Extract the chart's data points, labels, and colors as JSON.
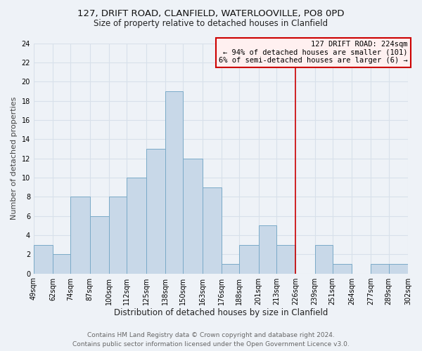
{
  "title": "127, DRIFT ROAD, CLANFIELD, WATERLOOVILLE, PO8 0PD",
  "subtitle": "Size of property relative to detached houses in Clanfield",
  "xlabel": "Distribution of detached houses by size in Clanfield",
  "ylabel": "Number of detached properties",
  "bin_edges": [
    49,
    62,
    74,
    87,
    100,
    112,
    125,
    138,
    150,
    163,
    176,
    188,
    201,
    213,
    226,
    239,
    251,
    264,
    277,
    289,
    302
  ],
  "bar_heights": [
    3,
    2,
    8,
    6,
    8,
    10,
    13,
    19,
    12,
    9,
    1,
    3,
    5,
    3,
    0,
    3,
    1,
    0,
    1,
    1
  ],
  "bar_color": "#c8d8e8",
  "bar_edgecolor": "#7aaac8",
  "redline_x": 226,
  "redline_color": "#cc0000",
  "annotation_title": "127 DRIFT ROAD: 224sqm",
  "annotation_line1": "← 94% of detached houses are smaller (101)",
  "annotation_line2": "6% of semi-detached houses are larger (6) →",
  "annotation_box_facecolor": "#fff0f0",
  "annotation_border_color": "#cc0000",
  "ylim": [
    0,
    24
  ],
  "yticks": [
    0,
    2,
    4,
    6,
    8,
    10,
    12,
    14,
    16,
    18,
    20,
    22,
    24
  ],
  "footer_line1": "Contains HM Land Registry data © Crown copyright and database right 2024.",
  "footer_line2": "Contains public sector information licensed under the Open Government Licence v3.0.",
  "bg_color": "#eef2f7",
  "grid_color": "#d8e0ea",
  "title_fontsize": 9.5,
  "subtitle_fontsize": 8.5,
  "axis_label_fontsize": 8,
  "tick_fontsize": 7,
  "annot_fontsize": 7.5,
  "footer_fontsize": 6.5
}
